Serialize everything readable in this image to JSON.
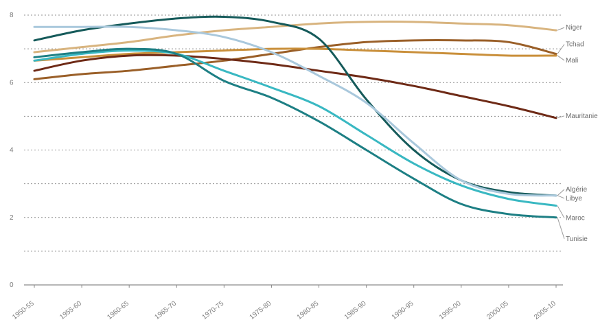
{
  "chart_data": {
    "type": "line",
    "title": "",
    "xlabel": "",
    "ylabel": "",
    "ylim": [
      0,
      8
    ],
    "yticks": [
      0,
      2,
      4,
      6,
      8
    ],
    "gridlines": [
      1,
      2,
      3,
      4,
      5,
      6,
      7,
      8
    ],
    "grid": "dashed horizontal",
    "legend": "labels at right end of lines",
    "categories": [
      "1950-55",
      "1955-60",
      "1960-65",
      "1965-70",
      "1970-75",
      "1975-80",
      "1980-85",
      "1985-90",
      "1990-95",
      "1995-00",
      "2000-05",
      "2005-10"
    ],
    "series": [
      {
        "name": "Niger",
        "color": "#d8b47f",
        "values": [
          6.9,
          7.05,
          7.2,
          7.4,
          7.55,
          7.65,
          7.75,
          7.8,
          7.8,
          7.75,
          7.7,
          7.55
        ]
      },
      {
        "name": "Tchad",
        "color": "#9a5f28",
        "values": [
          6.1,
          6.25,
          6.35,
          6.5,
          6.65,
          6.85,
          7.05,
          7.2,
          7.25,
          7.25,
          7.2,
          6.85
        ]
      },
      {
        "name": "Mali",
        "color": "#c98f3a",
        "values": [
          6.65,
          6.75,
          6.85,
          6.9,
          6.95,
          7.0,
          7.0,
          6.95,
          6.9,
          6.85,
          6.8,
          6.8
        ]
      },
      {
        "name": "Mauritanie",
        "color": "#6e2a16",
        "values": [
          6.35,
          6.65,
          6.8,
          6.8,
          6.7,
          6.55,
          6.35,
          6.15,
          5.9,
          5.6,
          5.3,
          4.95
        ]
      },
      {
        "name": "Algérie",
        "color": "#155a5a",
        "values": [
          7.25,
          7.55,
          7.75,
          7.9,
          7.95,
          7.8,
          7.3,
          5.5,
          4.0,
          3.1,
          2.75,
          2.65
        ]
      },
      {
        "name": "Libye",
        "color": "#a9c8dc",
        "values": [
          7.65,
          7.65,
          7.65,
          7.55,
          7.35,
          6.9,
          6.2,
          5.4,
          4.2,
          3.1,
          2.7,
          2.65
        ]
      },
      {
        "name": "Maroc",
        "color": "#39b8c2",
        "values": [
          6.65,
          6.85,
          6.95,
          6.85,
          6.35,
          5.85,
          5.3,
          4.45,
          3.6,
          2.95,
          2.55,
          2.35
        ]
      },
      {
        "name": "Tunisie",
        "color": "#1d7f84",
        "values": [
          6.75,
          6.9,
          7.0,
          6.85,
          6.05,
          5.55,
          4.85,
          4.0,
          3.15,
          2.4,
          2.1,
          2.0
        ]
      }
    ]
  }
}
